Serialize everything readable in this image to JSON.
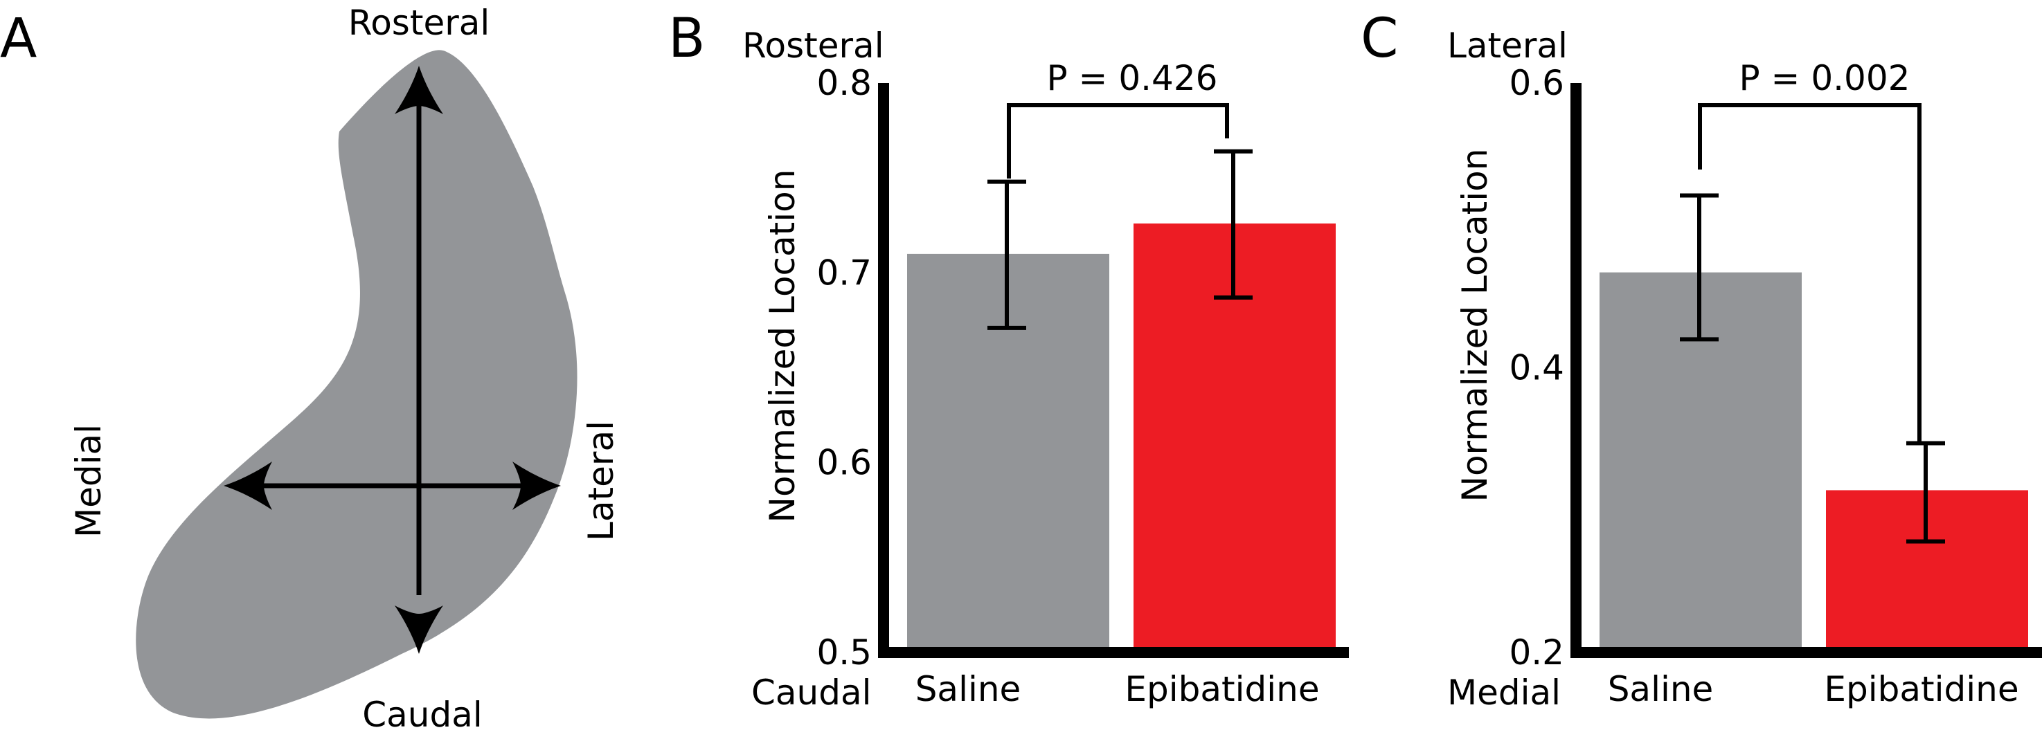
{
  "colors": {
    "shape_fill": "#939598",
    "saline": "#939598",
    "epibatidine": "#ed1c24",
    "axis": "#000000"
  },
  "panel_a": {
    "letter": "A",
    "labels": {
      "top": "Rosteral",
      "bottom": "Caudal",
      "left": "Medial",
      "right": "Lateral"
    }
  },
  "chart_data": [
    {
      "panel": "B",
      "type": "bar",
      "categories": [
        "Saline",
        "Epibatidine"
      ],
      "values": [
        0.71,
        0.726
      ],
      "errors": [
        [
          0.671,
          0.748
        ],
        [
          0.687,
          0.764
        ]
      ],
      "ylabel": "Normalized Location",
      "ylim": [
        0.5,
        0.8
      ],
      "yticks": [
        "0.5",
        "0.6",
        "0.7",
        "0.8"
      ],
      "ytick_values": [
        0.5,
        0.6,
        0.7,
        0.8
      ],
      "direction_top": "Rosteral",
      "direction_bottom": "Caudal",
      "annotation": "P = 0.426",
      "colors": [
        "#939598",
        "#ed1c24"
      ]
    },
    {
      "panel": "C",
      "type": "bar",
      "categories": [
        "Saline",
        "Epibatidine"
      ],
      "values": [
        0.467,
        0.314
      ],
      "errors": [
        [
          0.42,
          0.521
        ],
        [
          0.278,
          0.347
        ]
      ],
      "ylabel": "Normalized Location",
      "ylim": [
        0.2,
        0.6
      ],
      "yticks": [
        "0.2",
        "0.4",
        "0.6"
      ],
      "ytick_values": [
        0.2,
        0.4,
        0.6
      ],
      "direction_top": "Lateral",
      "direction_bottom": "Medial",
      "annotation": "P = 0.002",
      "colors": [
        "#939598",
        "#ed1c24"
      ]
    }
  ]
}
